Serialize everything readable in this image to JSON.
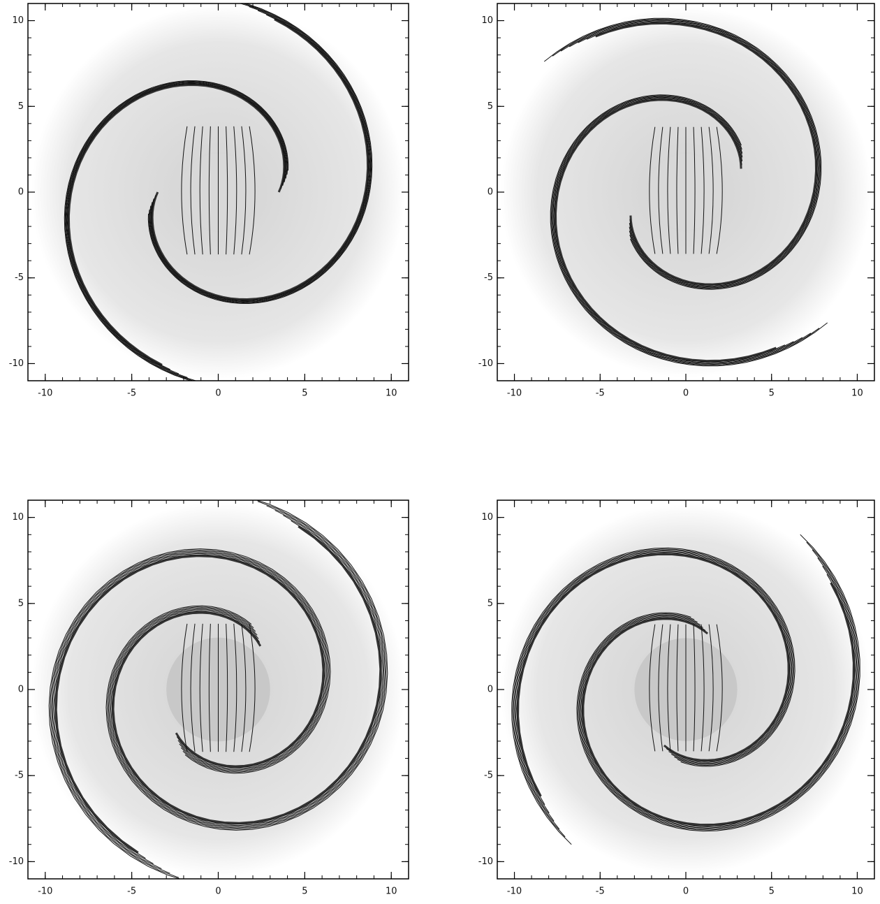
{
  "chart_data": [
    {
      "type": "contour",
      "xlim": [
        -11,
        11
      ],
      "ylim": [
        -11,
        11
      ],
      "xticks": [
        -10,
        -5,
        0,
        5,
        10
      ],
      "yticks": [
        -10,
        -5,
        0,
        5,
        10
      ]
    },
    {
      "type": "contour",
      "xlim": [
        -11,
        11
      ],
      "ylim": [
        -11,
        11
      ],
      "xticks": [
        -10,
        -5,
        0,
        5,
        10
      ],
      "yticks": [
        -10,
        -5,
        0,
        5,
        10
      ]
    },
    {
      "type": "contour",
      "xlim": [
        -11,
        11
      ],
      "ylim": [
        -11,
        11
      ],
      "xticks": [
        -10,
        -5,
        0,
        5,
        10
      ],
      "yticks": [
        -10,
        -5,
        0,
        5,
        10
      ]
    },
    {
      "type": "contour",
      "xlim": [
        -11,
        11
      ],
      "ylim": [
        -11,
        11
      ],
      "xticks": [
        -10,
        -5,
        0,
        5,
        10
      ],
      "yticks": [
        -10,
        -5,
        0,
        5,
        10
      ]
    }
  ]
}
